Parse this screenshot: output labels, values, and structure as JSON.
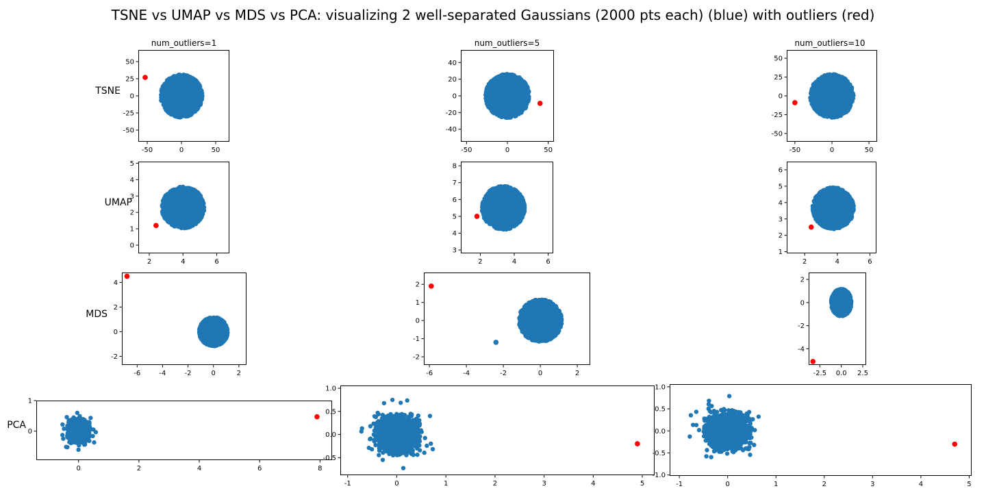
{
  "chart_data": {
    "type": "scatter",
    "title": "TSNE vs UMAP vs MDS vs PCA: visualizing 2 well-separated Gaussians (2000 pts each) (blue) with outliers (red)",
    "column_titles": [
      "num_outliers=1",
      "num_outliers=5",
      "num_outliers=10"
    ],
    "row_labels": [
      "TSNE",
      "UMAP",
      "MDS",
      "PCA"
    ],
    "colors": {
      "inliers": "#1f77b4",
      "outliers": "#ff0000"
    },
    "panels": [
      {
        "method": "TSNE",
        "num_outliers": 1,
        "xticks": [
          "-50",
          "0",
          "50"
        ],
        "xtick_values": [
          -50,
          0,
          50
        ],
        "yticks": [
          "50",
          "25",
          "0",
          "-25",
          "-50"
        ],
        "ytick_values": [
          50,
          25,
          0,
          -25,
          -50
        ],
        "xlim": [
          -63,
          70
        ],
        "ylim": [
          -67,
          67
        ],
        "inlier_cloud": {
          "center": [
            0,
            0
          ],
          "spread": [
            60,
            62
          ],
          "points": 2000
        },
        "outliers": [
          [
            -53,
            27
          ]
        ]
      },
      {
        "method": "TSNE",
        "num_outliers": 5,
        "xticks": [
          "-50",
          "0",
          "50"
        ],
        "xtick_values": [
          -50,
          0,
          50
        ],
        "yticks": [
          "40",
          "20",
          "0",
          "-20",
          "-40"
        ],
        "ytick_values": [
          40,
          20,
          0,
          -20,
          -40
        ],
        "xlim": [
          -57,
          57
        ],
        "ylim": [
          -55,
          55
        ],
        "inlier_cloud": {
          "center": [
            0,
            0
          ],
          "spread": [
            53,
            52
          ],
          "points": 2000
        },
        "outliers": [
          [
            40,
            -9
          ]
        ]
      },
      {
        "method": "TSNE",
        "num_outliers": 10,
        "xticks": [
          "-50",
          "0",
          "50"
        ],
        "xtick_values": [
          -50,
          0,
          50
        ],
        "yticks": [
          "50",
          "25",
          "0",
          "-25",
          "-50"
        ],
        "ytick_values": [
          50,
          25,
          0,
          -25,
          -50
        ],
        "xlim": [
          -61,
          61
        ],
        "ylim": [
          -61,
          61
        ],
        "inlier_cloud": {
          "center": [
            0,
            0
          ],
          "spread": [
            58,
            57
          ],
          "points": 2000
        },
        "outliers": [
          [
            -50,
            -9
          ]
        ]
      },
      {
        "method": "UMAP",
        "num_outliers": 1,
        "xticks": [
          "2",
          "4",
          "6"
        ],
        "xtick_values": [
          2,
          4,
          6
        ],
        "yticks": [
          "5",
          "4",
          "3",
          "2",
          "1",
          "0"
        ],
        "ytick_values": [
          5,
          4,
          3,
          2,
          1,
          0
        ],
        "xlim": [
          1.35,
          6.75
        ],
        "ylim": [
          -0.5,
          5.1
        ],
        "inlier_cloud": {
          "center": [
            4,
            2.3
          ],
          "spread": [
            2.5,
            2.5
          ],
          "points": 2000
        },
        "outliers": [
          [
            2.4,
            1.2
          ]
        ]
      },
      {
        "method": "UMAP",
        "num_outliers": 5,
        "xticks": [
          "2",
          "4",
          "6"
        ],
        "xtick_values": [
          2,
          4,
          6
        ],
        "yticks": [
          "8",
          "7",
          "6",
          "5",
          "4",
          "3"
        ],
        "ytick_values": [
          8,
          7,
          6,
          5,
          4,
          3
        ],
        "xlim": [
          0.85,
          6.3
        ],
        "ylim": [
          2.8,
          8.25
        ],
        "inlier_cloud": {
          "center": [
            3.35,
            5.5
          ],
          "spread": [
            2.5,
            2.55
          ],
          "points": 2000
        },
        "outliers": [
          [
            1.8,
            5.0
          ]
        ]
      },
      {
        "method": "UMAP",
        "num_outliers": 10,
        "xticks": [
          "2",
          "4",
          "6"
        ],
        "xtick_values": [
          2,
          4,
          6
        ],
        "yticks": [
          "6",
          "5",
          "4",
          "3",
          "2",
          "1"
        ],
        "ytick_values": [
          6,
          5,
          4,
          3,
          2,
          1
        ],
        "xlim": [
          0.9,
          6.4
        ],
        "ylim": [
          0.9,
          6.5
        ],
        "inlier_cloud": {
          "center": [
            3.75,
            3.65
          ],
          "spread": [
            2.5,
            2.5
          ],
          "points": 2000
        },
        "outliers": [
          [
            2.4,
            2.5
          ]
        ]
      },
      {
        "method": "MDS",
        "num_outliers": 1,
        "xticks": [
          "-6",
          "-4",
          "-2",
          "0",
          "2"
        ],
        "xtick_values": [
          -6,
          -4,
          -2,
          0,
          2
        ],
        "yticks": [
          "4",
          "2",
          "0",
          "-2"
        ],
        "ytick_values": [
          4,
          2,
          0,
          -2
        ],
        "xlim": [
          -7.2,
          2.6
        ],
        "ylim": [
          -2.7,
          4.8
        ],
        "inlier_cloud": {
          "center": [
            0,
            0
          ],
          "spread": [
            2.2,
            2.3
          ],
          "points": 2000
        },
        "outliers": [
          [
            -6.8,
            4.5
          ]
        ]
      },
      {
        "method": "MDS",
        "num_outliers": 5,
        "xticks": [
          "-6",
          "-4",
          "-2",
          "0",
          "2"
        ],
        "xtick_values": [
          -6,
          -4,
          -2,
          0,
          2
        ],
        "yticks": [
          "2",
          "1",
          "0",
          "-1",
          "-2"
        ],
        "ytick_values": [
          2,
          1,
          0,
          -1,
          -2
        ],
        "xlim": [
          -6.3,
          2.7
        ],
        "ylim": [
          -2.45,
          2.65
        ],
        "inlier_cloud": {
          "center": [
            0,
            0
          ],
          "spread": [
            2.3,
            2.3
          ],
          "points": 2000
        },
        "outliers": [
          [
            -5.9,
            1.9
          ],
          [
            -2.4,
            -1.2
          ]
        ]
      },
      {
        "method": "MDS",
        "num_outliers": 10,
        "xticks": [
          "-2.5",
          "0.0",
          "2.5"
        ],
        "xtick_values": [
          -2.5,
          0,
          2.5
        ],
        "yticks": [
          "2",
          "0",
          "-2",
          "-4"
        ],
        "ytick_values": [
          2,
          0,
          -2,
          -4
        ],
        "xlim": [
          -3.8,
          2.9
        ],
        "ylim": [
          -5.4,
          2.6
        ],
        "inlier_cloud": {
          "center": [
            0,
            0
          ],
          "spread": [
            2.3,
            2.3
          ],
          "points": 2000
        },
        "outliers": [
          [
            -3.3,
            -5.1
          ]
        ]
      },
      {
        "method": "PCA",
        "num_outliers": 1,
        "xticks": [
          "0",
          "2",
          "4",
          "6",
          "8"
        ],
        "xtick_values": [
          0,
          2,
          4,
          6,
          8
        ],
        "yticks": [
          "1",
          "0"
        ],
        "ytick_values": [
          1,
          0
        ],
        "xlim": [
          -1.4,
          8.4
        ],
        "ylim": [
          -0.95,
          1.0
        ],
        "inlier_cloud": {
          "center": [
            0,
            0
          ],
          "spread": [
            0.75,
            0.8
          ],
          "points": 2000
        },
        "outliers": [
          [
            7.9,
            0.47
          ]
        ]
      },
      {
        "method": "PCA",
        "num_outliers": 5,
        "xticks": [
          "-1",
          "0",
          "1",
          "2",
          "3",
          "4",
          "5"
        ],
        "xtick_values": [
          -1,
          0,
          1,
          2,
          3,
          4,
          5
        ],
        "yticks": [
          "1.0",
          "0.5",
          "0.0",
          "-0.5"
        ],
        "ytick_values": [
          1.0,
          0.5,
          0.0,
          -0.5
        ],
        "xlim": [
          -1.15,
          5.25
        ],
        "ylim": [
          -0.88,
          1.06
        ],
        "inlier_cloud": {
          "center": [
            0,
            0
          ],
          "spread": [
            0.95,
            0.9
          ],
          "points": 2000
        },
        "outliers": [
          [
            4.9,
            -0.2
          ]
        ]
      },
      {
        "method": "PCA",
        "num_outliers": 10,
        "xticks": [
          "-1",
          "0",
          "1",
          "2",
          "3",
          "4",
          "5"
        ],
        "xtick_values": [
          -1,
          0,
          1,
          2,
          3,
          4,
          5
        ],
        "yticks": [
          "1.0",
          "0.5",
          "0.0",
          "-0.5",
          "-1.0"
        ],
        "ytick_values": [
          1.0,
          0.5,
          0.0,
          -0.5,
          -1.0
        ],
        "xlim": [
          -1.2,
          5.05
        ],
        "ylim": [
          -1.02,
          1.06
        ],
        "inlier_cloud": {
          "center": [
            0,
            0
          ],
          "spread": [
            1.0,
            0.95
          ],
          "points": 2000
        },
        "outliers": [
          [
            4.7,
            -0.3
          ]
        ]
      }
    ]
  }
}
